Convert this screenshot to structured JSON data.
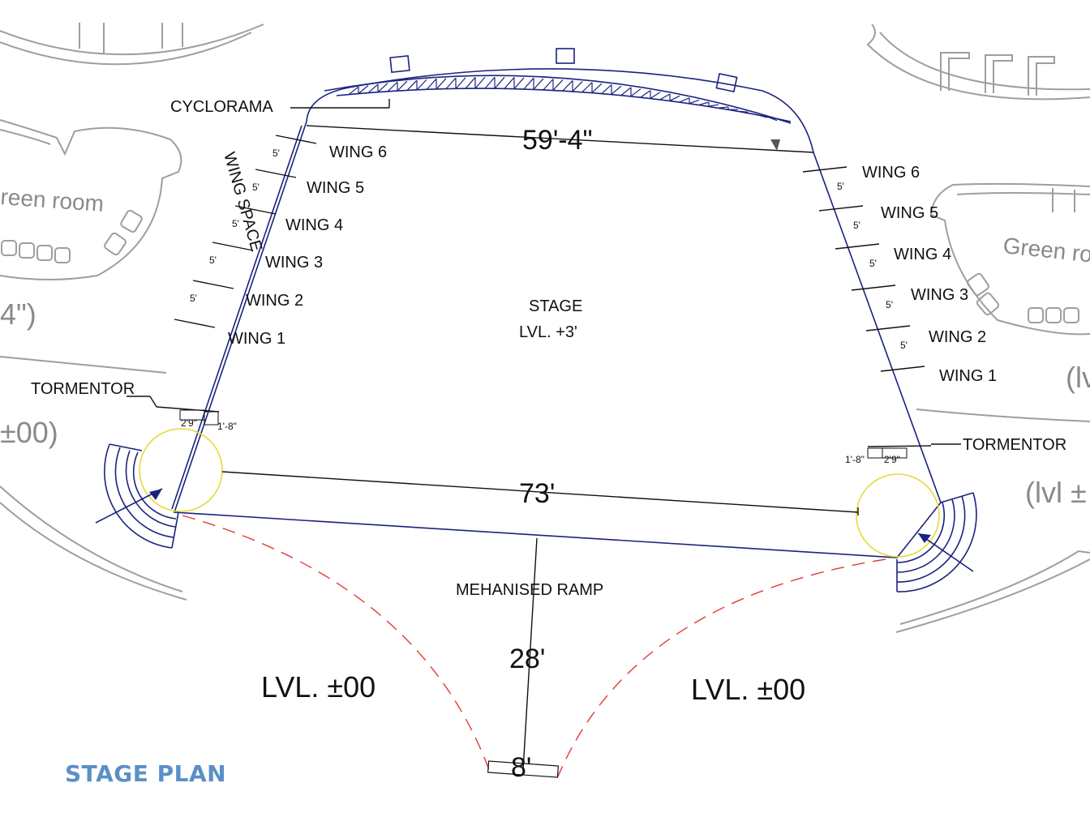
{
  "title": "STAGE PLAN",
  "colors": {
    "stage_outline": "#1a237e",
    "ramp_arc": "#e53935",
    "revolve": "#e8d93a",
    "title": "#5b8fc7",
    "ghost": "#9e9e9e"
  },
  "labels": {
    "cyclorama": "CYCLORAMA",
    "wing_space": "WING SPACE",
    "stage": "STAGE",
    "stage_level": "LVL. +3'",
    "ramp": "MEHANISED RAMP",
    "tormentor_left": "TORMENTOR",
    "tormentor_right": "TORMENTOR",
    "level_left": "LVL. ±00",
    "level_right": "LVL. ±00"
  },
  "dimensions": {
    "cyclorama_width": "59'-4\"",
    "proscenium_width": "73'",
    "ramp_depth": "28'",
    "ramp_end": "8'",
    "tormentor_left_a": "2'9\"",
    "tormentor_left_b": "1'-8\"",
    "tormentor_right_a": "1'-8\"",
    "tormentor_right_b": "2'9\""
  },
  "wings_left": [
    "WING 6",
    "WING 5",
    "WING 4",
    "WING 3",
    "WING 2",
    "WING 1"
  ],
  "wings_right": [
    "WING 6",
    "WING 5",
    "WING 4",
    "WING 3",
    "WING 2",
    "WING 1"
  ],
  "wing_spacing_label": "5'",
  "ghost_text": {
    "green_room_left": "reen room",
    "green_room_right": "Green ro",
    "left_level_a": "4\")",
    "left_level_b": "±00)",
    "right_level_a": "(lv",
    "right_level_b": "(lvl ±"
  }
}
